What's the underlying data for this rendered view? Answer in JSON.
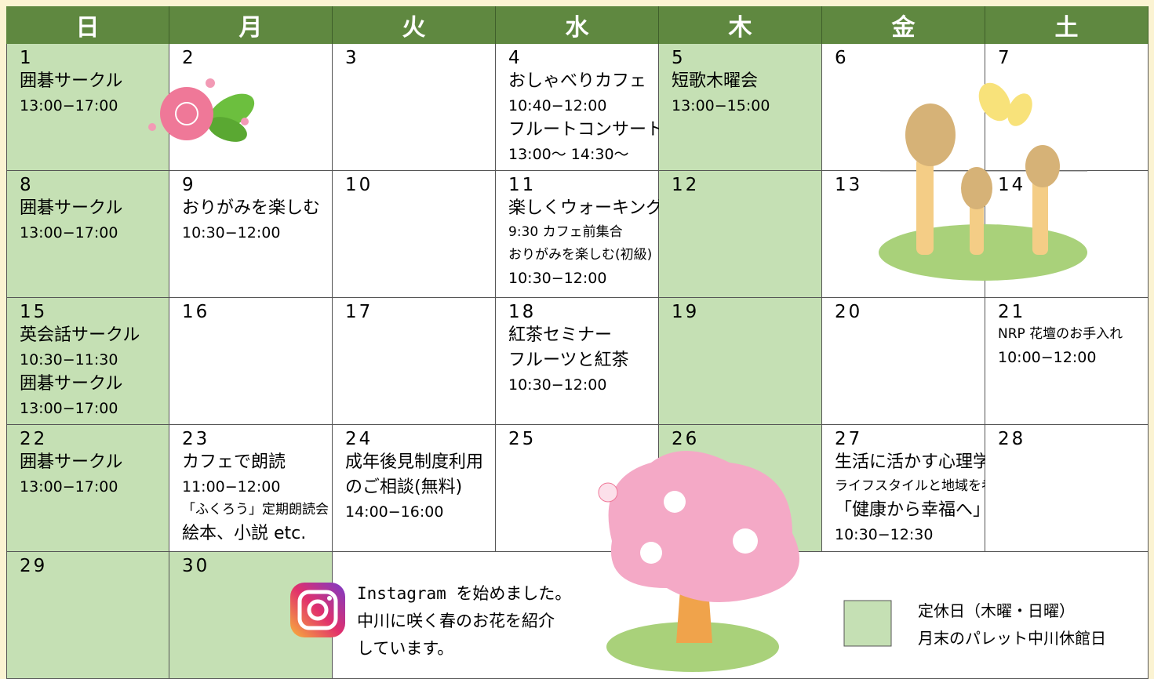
{
  "header": {
    "days": [
      "日",
      "月",
      "火",
      "水",
      "木",
      "金",
      "土"
    ]
  },
  "weeks": [
    [
      {
        "day": 1,
        "closed": true,
        "lines": [
          "囲碁サークル",
          "13:00−17:00"
        ]
      },
      {
        "day": 2,
        "lines": []
      },
      {
        "day": 3,
        "lines": []
      },
      {
        "day": 4,
        "lines": [
          "おしゃべりカフェ",
          "10:40−12:00",
          "フルートコンサート",
          "13:00〜 14:30〜"
        ]
      },
      {
        "day": 5,
        "closed": true,
        "lines": [
          "短歌木曜会",
          "13:00−15:00"
        ]
      },
      {
        "day": 6,
        "lines": []
      },
      {
        "day": 7,
        "lines": []
      }
    ],
    [
      {
        "day": 8,
        "closed": true,
        "lines": [
          "囲碁サークル",
          "13:00−17:00"
        ]
      },
      {
        "day": 9,
        "lines": [
          "おりがみを楽しむ",
          "10:30−12:00"
        ]
      },
      {
        "day": 10,
        "lines": []
      },
      {
        "day": 11,
        "lines": [
          "楽しくウォーキング",
          "9:30 カフェ前集合",
          "おりがみを楽しむ(初級)",
          "10:30−12:00"
        ]
      },
      {
        "day": 12,
        "closed": true,
        "lines": []
      },
      {
        "day": 13,
        "lines": []
      },
      {
        "day": 14,
        "lines": []
      }
    ],
    [
      {
        "day": 15,
        "closed": true,
        "lines": [
          "英会話サークル",
          "10:30−11:30",
          "囲碁サークル",
          "13:00−17:00"
        ]
      },
      {
        "day": 16,
        "lines": []
      },
      {
        "day": 17,
        "lines": []
      },
      {
        "day": 18,
        "lines": [
          "紅茶セミナー",
          "フルーツと紅茶",
          "10:30−12:00"
        ]
      },
      {
        "day": 19,
        "closed": true,
        "lines": []
      },
      {
        "day": 20,
        "lines": []
      },
      {
        "day": 21,
        "lines": [
          "NRP 花壇のお手入れ",
          "10:00−12:00"
        ]
      }
    ],
    [
      {
        "day": 22,
        "closed": true,
        "lines": [
          "囲碁サークル",
          "13:00−17:00"
        ]
      },
      {
        "day": 23,
        "lines": [
          "カフェで朗読",
          "11:00−12:00",
          "「ふくろう」定期朗読会",
          "絵本、小説 etc."
        ]
      },
      {
        "day": 24,
        "lines": [
          "成年後見制度利用",
          "のご相談(無料)",
          "14:00−16:00"
        ]
      },
      {
        "day": 25,
        "lines": []
      },
      {
        "day": 26,
        "closed": true,
        "lines": []
      },
      {
        "day": 27,
        "lines": [
          "生活に活かす心理学",
          "ライフスタイルと地域を考える",
          "「健康から幸福へ」",
          "10:30−12:30"
        ]
      },
      {
        "day": 28,
        "lines": []
      }
    ],
    [
      {
        "day": 29,
        "closed": true,
        "lines": []
      },
      {
        "day": 30,
        "closed": true,
        "lines": []
      }
    ]
  ],
  "notice": {
    "lines": [
      "Instagram を始めました。",
      "中川に咲く春のお花を紹介",
      "しています。"
    ]
  },
  "legend": {
    "lines": [
      "定休日（木曜・日曜）",
      "月末のパレット中川休館日"
    ]
  }
}
